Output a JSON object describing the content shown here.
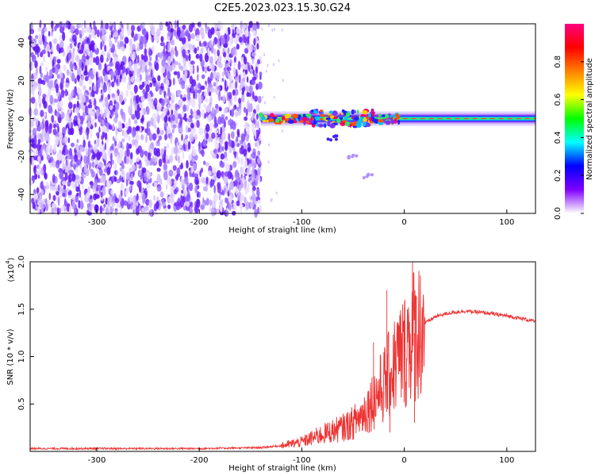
{
  "title": "C2E5.2023.023.15.30.G24",
  "chart_data": [
    {
      "type": "heatmap",
      "name": "spectrogram",
      "xlabel": "Height of straight line (km)",
      "ylabel": "Frequency (Hz)",
      "xlim": [
        -365,
        128
      ],
      "ylim": [
        -50,
        50
      ],
      "xticks": [
        -300,
        -200,
        -100,
        0,
        100
      ],
      "yticks": [
        -40,
        -20,
        0,
        20,
        40
      ],
      "colorbar": {
        "label": "Normalized spectral amplitude",
        "range": [
          0,
          1
        ],
        "ticks": [
          0.0,
          0.2,
          0.4,
          0.6,
          0.8
        ],
        "colormap": "rainbow",
        "colors": [
          "#ffffff",
          "#8000ff",
          "#0000ff",
          "#00ffff",
          "#00ff00",
          "#ffff00",
          "#ff8000",
          "#ff0000",
          "#ff0080"
        ]
      },
      "features": {
        "noise_region_x": [
          -365,
          -140
        ],
        "signal_line_x": [
          -140,
          128
        ],
        "signal_line_freq_hz": 0,
        "scatter_blob_x": [
          -90,
          -30
        ],
        "descending_branch": [
          [
            -70,
            -10
          ],
          [
            -50,
            -20
          ],
          [
            -35,
            -30
          ]
        ]
      }
    },
    {
      "type": "line",
      "name": "snr",
      "xlabel": "Height of straight line (km)",
      "ylabel": "SNR (10 * v/v)",
      "yscale_label": "(x10",
      "yscale_exp": "4",
      "xlim": [
        -365,
        128
      ],
      "ylim": [
        0,
        2.0
      ],
      "xticks": [
        -300,
        -200,
        -100,
        0,
        100
      ],
      "yticks": [
        0.5,
        1.0,
        1.5,
        2.0
      ],
      "line_color": "#ee3333",
      "series": [
        {
          "x": [
            -365,
            -300,
            -200,
            -140,
            -120,
            -100,
            -80,
            -60,
            -50,
            -40,
            -30,
            -20,
            -15,
            -10,
            -5,
            0,
            5,
            10,
            20,
            30,
            40,
            50,
            60,
            80,
            100,
            120,
            128
          ],
          "y": [
            0.03,
            0.03,
            0.03,
            0.04,
            0.06,
            0.1,
            0.18,
            0.25,
            0.3,
            0.4,
            0.55,
            0.7,
            0.8,
            0.9,
            1.0,
            1.05,
            1.2,
            1.25,
            1.35,
            1.42,
            1.45,
            1.47,
            1.48,
            1.46,
            1.43,
            1.39,
            1.37
          ]
        }
      ],
      "spikes": [
        {
          "x": -30,
          "y": 1.15
        },
        {
          "x": -17,
          "y": 1.7
        },
        {
          "x": -14,
          "y": 0.2
        },
        {
          "x": 8,
          "y": 2.0
        },
        {
          "x": 10,
          "y": 0.3
        }
      ]
    }
  ]
}
